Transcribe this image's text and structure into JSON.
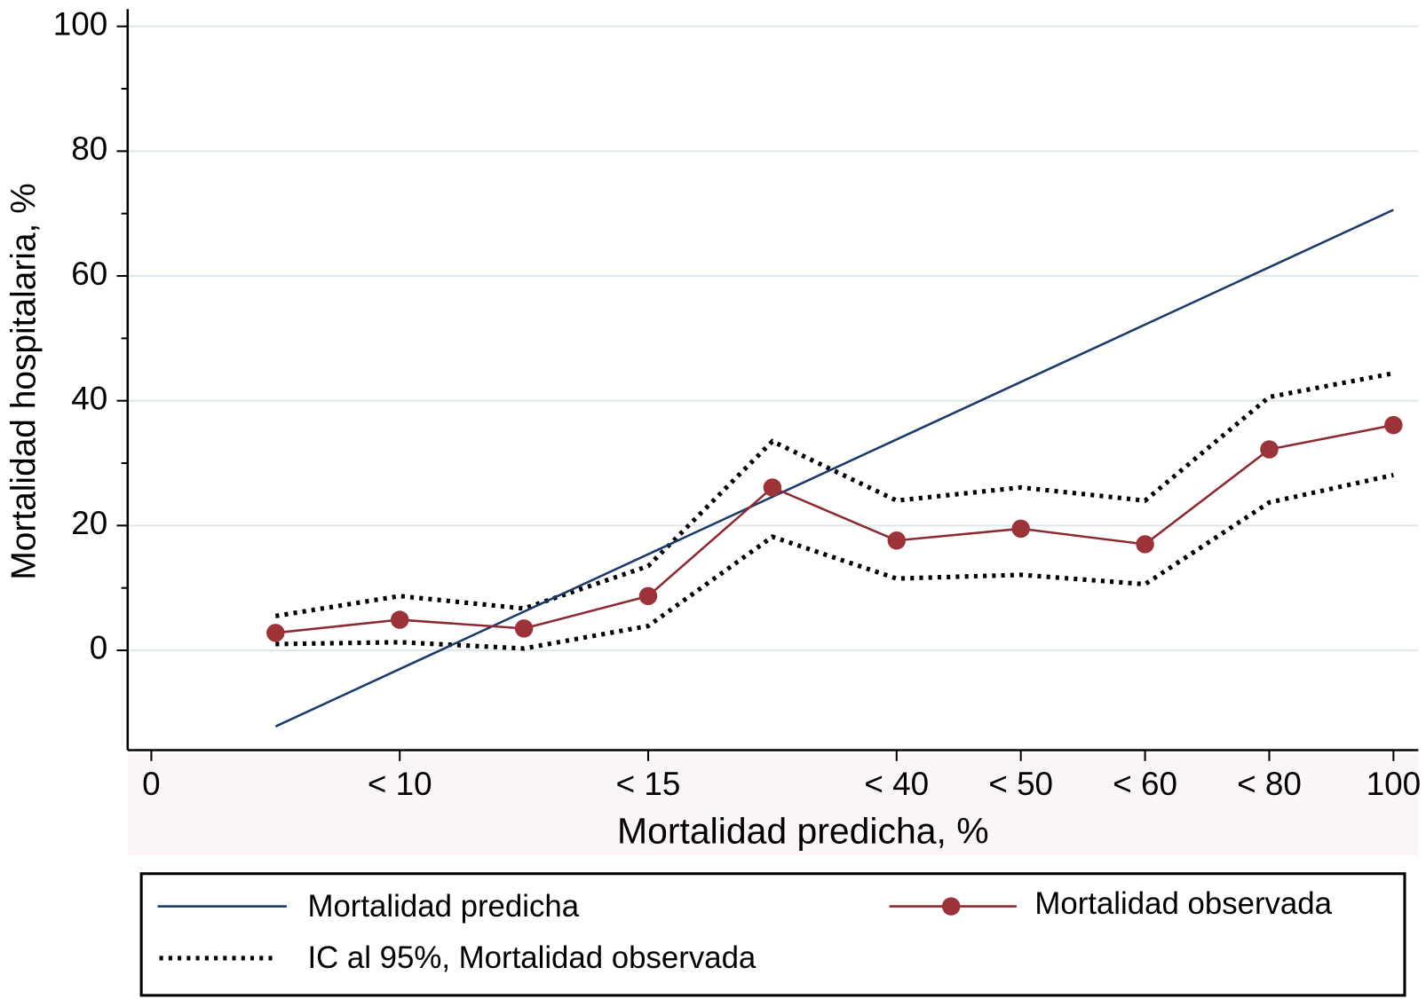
{
  "chart_data": {
    "type": "line",
    "xlabel": "Mortalidad predicha, %",
    "ylabel": "Mortalidad hospitalaria, %",
    "x": [
      1,
      2,
      3,
      4,
      5,
      6,
      7,
      8,
      9,
      10
    ],
    "xlim": [
      -0.2,
      10.2
    ],
    "xticks": [
      0,
      {
        "value": 2,
        "label": "< 10"
      },
      {
        "value": 4,
        "label": "< 15"
      },
      {
        "value": 6,
        "label": "< 40"
      },
      {
        "value": 7,
        "label": "< 50"
      },
      {
        "value": 8,
        "label": "< 60"
      },
      {
        "value": 9,
        "label": "< 80"
      },
      {
        "value": 10,
        "label": "100"
      }
    ],
    "ylim": [
      -16,
      102
    ],
    "yticks": [
      0,
      20,
      40,
      60,
      80,
      100
    ],
    "yminorticks": [
      10,
      30,
      50,
      70,
      90
    ],
    "grid": true,
    "series": [
      {
        "name": "Mortalidad predicha",
        "color": "#1a3a68",
        "values": [
          -12.2,
          -3.0,
          6.2,
          15.4,
          24.6,
          33.8,
          43.0,
          52.2,
          61.4,
          70.6
        ]
      },
      {
        "name": "Mortalidad observada",
        "color": "#8c2a33",
        "marker": "circle",
        "values": [
          2.8,
          4.9,
          3.5,
          8.7,
          26.1,
          17.6,
          19.5,
          17.0,
          32.2,
          36.1
        ]
      }
    ],
    "ci": {
      "name": "IC al 95%, Mortalidad observada",
      "color": "#000000",
      "upper": [
        5.5,
        8.7,
        6.7,
        13.5,
        33.5,
        24.0,
        26.1,
        24.0,
        40.6,
        44.4
      ],
      "lower": [
        1.0,
        1.3,
        0.3,
        3.9,
        18.2,
        11.5,
        12.1,
        10.6,
        23.7,
        28.1
      ]
    }
  }
}
